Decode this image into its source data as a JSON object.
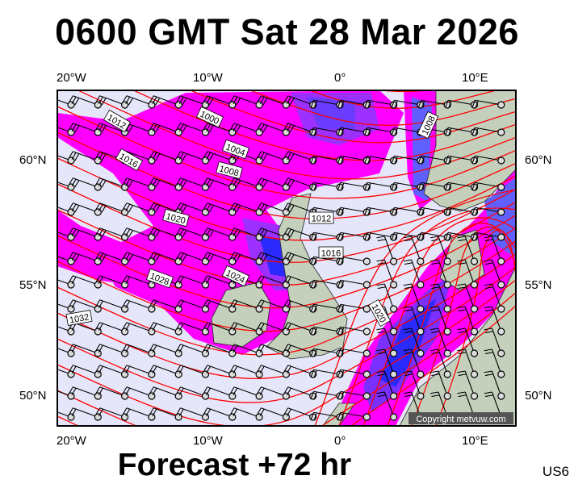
{
  "title": "0600 GMT Sat 28 Mar 2026",
  "footer": "Forecast +72 hr",
  "code": "US6",
  "copyright": "Copyright metvuw.com",
  "axes": {
    "lon_labels": [
      "20°W",
      "10°W",
      "0°",
      "10°E"
    ],
    "lat_labels": [
      "60°N",
      "55°N",
      "50°N"
    ]
  },
  "isobar_labels": [
    "1000",
    "1004",
    "1008",
    "1012",
    "1016",
    "1020",
    "1024",
    "1028",
    "1032",
    "1012",
    "1016",
    "1020",
    "1008"
  ],
  "colors": {
    "background": "#e6e6fa",
    "rain_light": "#ff00ff",
    "rain_mid": "#9b30ff",
    "rain_heavy": "#2a2aff",
    "land": "#c4d0bc",
    "isobar": "#ff0000"
  }
}
